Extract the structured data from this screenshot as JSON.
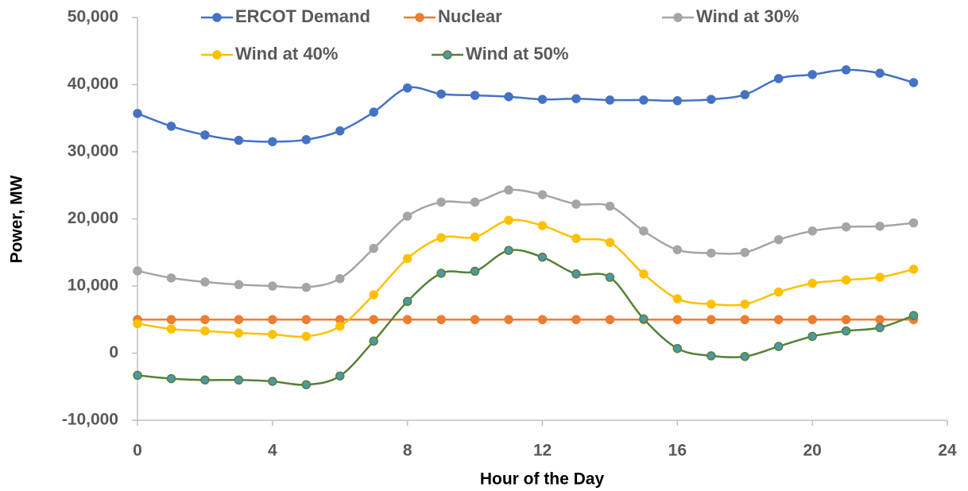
{
  "chart_data": {
    "type": "line",
    "xlabel": "Hour of the Day",
    "ylabel": "Power, MW",
    "x": [
      0,
      1,
      2,
      3,
      4,
      5,
      6,
      7,
      8,
      9,
      10,
      11,
      12,
      13,
      14,
      15,
      16,
      17,
      18,
      19,
      20,
      21,
      22,
      23
    ],
    "xlim": [
      0,
      24
    ],
    "xticks": [
      0,
      4,
      8,
      12,
      16,
      20,
      24
    ],
    "ylim": [
      -10000,
      50000
    ],
    "yticks": [
      {
        "value": -10000,
        "label": "-10,000"
      },
      0,
      {
        "value": 10000,
        "label": "10,000"
      },
      {
        "value": 20000,
        "label": "20,000"
      },
      {
        "value": 30000,
        "label": "30,000"
      },
      {
        "value": 40000,
        "label": "40,000"
      },
      {
        "value": 50000,
        "label": "50,000"
      }
    ],
    "grid": false,
    "smooth": true,
    "legend": "top",
    "series": [
      {
        "name": "ERCOT Demand",
        "color": "#4472c4",
        "values": [
          35700,
          33800,
          32500,
          31700,
          31500,
          31800,
          33100,
          35900,
          39500,
          38600,
          38400,
          38200,
          37800,
          37900,
          37700,
          37700,
          37600,
          37800,
          38500,
          40900,
          41500,
          42200,
          41700,
          40300
        ]
      },
      {
        "name": "Nuclear",
        "color": "#ed7d31",
        "values": [
          5000,
          5000,
          5000,
          5000,
          5000,
          5000,
          5000,
          5000,
          5000,
          5000,
          5000,
          5000,
          5000,
          5000,
          5000,
          5000,
          5000,
          5000,
          5000,
          5000,
          5000,
          5000,
          5000,
          5000
        ]
      },
      {
        "name": "Wind at 30%",
        "color": "#a5a5a5",
        "values": [
          12250,
          11200,
          10600,
          10200,
          10000,
          9800,
          11100,
          15600,
          20400,
          22500,
          22500,
          24300,
          23600,
          22200,
          21900,
          18200,
          15400,
          14900,
          15000,
          16900,
          18200,
          18800,
          18900,
          19400
        ]
      },
      {
        "name": "Wind at 40%",
        "color": "#ffc000",
        "values": [
          4400,
          3600,
          3300,
          3000,
          2800,
          2500,
          4000,
          8700,
          14100,
          17200,
          17300,
          19800,
          19000,
          17100,
          16500,
          11800,
          8100,
          7300,
          7300,
          9100,
          10400,
          10900,
          11300,
          12500
        ]
      },
      {
        "name": "Wind at 50%",
        "color": "#548235",
        "marker_color": "#4f96a6",
        "values": [
          -3300,
          -3800,
          -4000,
          -4000,
          -4200,
          -4700,
          -3400,
          1800,
          7700,
          11900,
          12200,
          15300,
          14300,
          11800,
          11300,
          5100,
          700,
          -400,
          -500,
          1000,
          2500,
          3300,
          3800,
          5600
        ]
      }
    ]
  }
}
